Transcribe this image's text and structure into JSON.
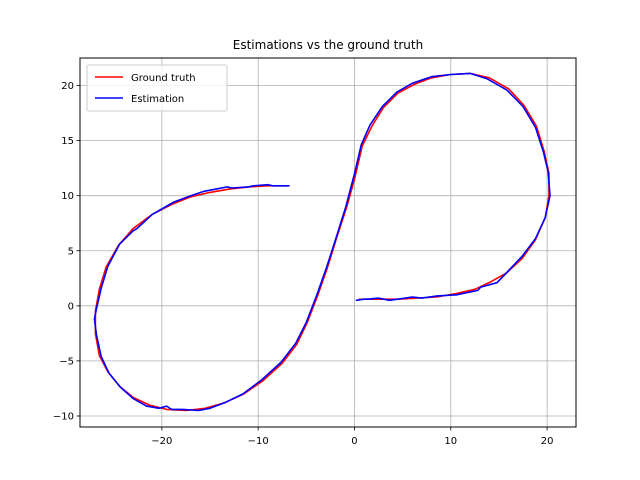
{
  "chart_data": {
    "type": "line",
    "title": "Estimations vs the ground truth",
    "xlabel": "",
    "ylabel": "",
    "xlim": [
      -28.5,
      23
    ],
    "ylim": [
      -11,
      22.5
    ],
    "xticks": [
      -20,
      -10,
      0,
      10,
      20
    ],
    "yticks": [
      -10,
      -5,
      0,
      5,
      10,
      15,
      20
    ],
    "grid": true,
    "legend_position": "top-left",
    "series": [
      {
        "name": "Ground truth",
        "color": "#ff0000",
        "x": [
          -7,
          -9,
          -11,
          -13,
          -15,
          -17,
          -19,
          -21,
          -23,
          -24.5,
          -25.8,
          -26.5,
          -26.9,
          -26.9,
          -26.5,
          -25.6,
          -24.4,
          -23,
          -21.3,
          -19.5,
          -17.5,
          -15.5,
          -13.5,
          -11.5,
          -9.5,
          -7.5,
          -6,
          -4.9,
          -3.8,
          -2.8,
          -1.8,
          -0.8,
          0,
          0.8,
          1.8,
          3,
          4.5,
          6.2,
          8,
          10,
          12,
          14,
          16,
          17.6,
          18.9,
          19.7,
          20.2,
          20.2,
          19.8,
          18.8,
          17.4,
          15.8,
          14.2,
          12.5,
          10.5,
          8.5,
          6.5,
          4.5,
          2.5,
          0.5
        ],
        "y": [
          10.9,
          10.9,
          10.8,
          10.6,
          10.3,
          9.9,
          9.2,
          8.3,
          7,
          5.5,
          3.5,
          1.5,
          -0.5,
          -2.5,
          -4.5,
          -6,
          -7.3,
          -8.3,
          -9,
          -9.4,
          -9.5,
          -9.3,
          -8.8,
          -8,
          -6.8,
          -5.2,
          -3.5,
          -1.5,
          1,
          3.5,
          6.3,
          9,
          11.5,
          14.5,
          16.3,
          18,
          19.3,
          20.1,
          20.7,
          21,
          21.1,
          20.7,
          19.7,
          18.2,
          16.3,
          14,
          12,
          10,
          8,
          6,
          4.3,
          3,
          2.2,
          1.5,
          1.1,
          0.8,
          0.7,
          0.6,
          0.6,
          0.6
        ]
      },
      {
        "name": "Estimation",
        "color": "#0000ff",
        "x": [
          -6.8,
          -8.5,
          -9,
          -10.5,
          -11,
          -12.8,
          -13.2,
          -15,
          -15.6,
          -17,
          -18.8,
          -19.2,
          -21,
          -22.6,
          -23,
          -24.4,
          -25.6,
          -26.3,
          -26.8,
          -27,
          -26.8,
          -26.3,
          -25.5,
          -24.3,
          -23,
          -21.6,
          -20.3,
          -19.5,
          -19,
          -17.8,
          -16.2,
          -15,
          -13.5,
          -11.6,
          -9.6,
          -7.6,
          -6.1,
          -5,
          -3.9,
          -2.9,
          -1.9,
          -0.9,
          0,
          0.7,
          1.6,
          2.9,
          4.4,
          6,
          8,
          10,
          12,
          13.8,
          15.8,
          17.5,
          18.8,
          19.6,
          20.1,
          20.3,
          19.8,
          18.8,
          17.4,
          16,
          14.8,
          13.1,
          12.8,
          10.6,
          8.6,
          7,
          6,
          4.5,
          3.6,
          2.5,
          1.4,
          1,
          0.2
        ],
        "y": [
          10.9,
          10.9,
          11,
          10.9,
          10.8,
          10.7,
          10.8,
          10.5,
          10.4,
          10,
          9.4,
          9.2,
          8.3,
          7,
          6.8,
          5.6,
          3.6,
          1.6,
          -0.3,
          -1.2,
          -2.6,
          -4.6,
          -6.1,
          -7.4,
          -8.4,
          -9.1,
          -9.3,
          -9.1,
          -9.4,
          -9.4,
          -9.5,
          -9.3,
          -8.8,
          -8,
          -6.7,
          -5.1,
          -3.4,
          -1.5,
          1,
          3.5,
          6.2,
          9,
          12,
          14.6,
          16.4,
          18.1,
          19.4,
          20.2,
          20.8,
          21,
          21.1,
          20.6,
          19.6,
          18.1,
          16.2,
          14,
          12.2,
          10,
          8,
          6.1,
          4.5,
          3.2,
          2.1,
          1.7,
          1.4,
          1,
          0.9,
          0.7,
          0.8,
          0.6,
          0.5,
          0.7,
          0.6,
          0.6,
          0.5
        ]
      }
    ]
  }
}
